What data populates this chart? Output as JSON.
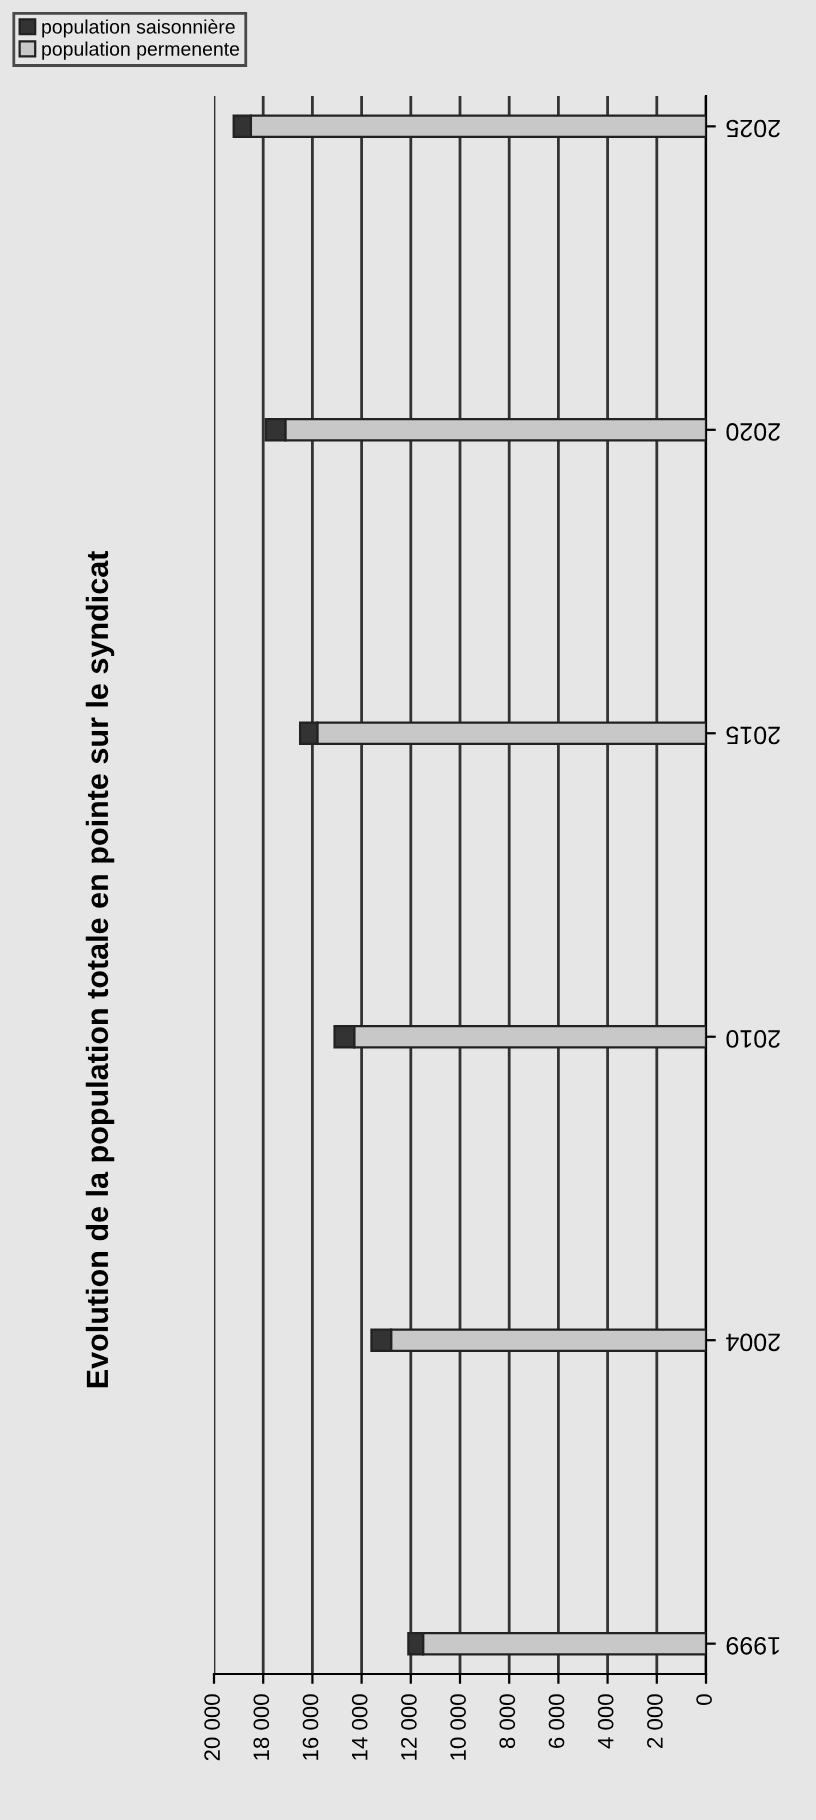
{
  "chart_data": {
    "type": "bar",
    "orientation": "horizontal",
    "stacked": true,
    "title": "Evolution de la population totale en pointe sur le syndicat",
    "categories": [
      "2025",
      "2020",
      "2015",
      "2010",
      "2004",
      "1999"
    ],
    "series": [
      {
        "name": "population permenente",
        "color": "#c8c8c8",
        "values": [
          18500,
          17100,
          15800,
          14300,
          12800,
          11500
        ]
      },
      {
        "name": "population saisonnière",
        "color": "#333333",
        "values": [
          700,
          800,
          700,
          800,
          800,
          600
        ]
      }
    ],
    "xlim": [
      20000,
      0
    ],
    "xticks": [
      {
        "value": 20000,
        "label": "20 000"
      },
      {
        "value": 18000,
        "label": "18 000"
      },
      {
        "value": 16000,
        "label": "16 000"
      },
      {
        "value": 14000,
        "label": "14 000"
      },
      {
        "value": 12000,
        "label": "12 000"
      },
      {
        "value": 10000,
        "label": "10 000"
      },
      {
        "value": 8000,
        "label": "8 000"
      },
      {
        "value": 6000,
        "label": "6 000"
      },
      {
        "value": 4000,
        "label": "4 000"
      },
      {
        "value": 2000,
        "label": "2 000"
      },
      0
    ],
    "grid": "x",
    "legend": "top left"
  }
}
